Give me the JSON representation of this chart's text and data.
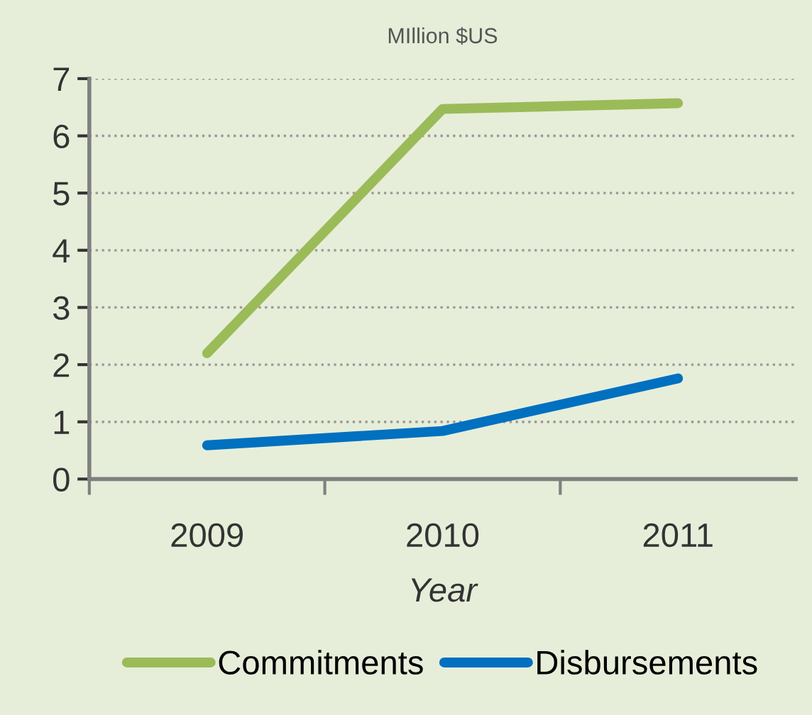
{
  "chart_data": {
    "type": "line",
    "title": "MIllion $US",
    "xlabel": "Year",
    "categories": [
      "2009",
      "2010",
      "2011"
    ],
    "series": [
      {
        "name": "Commitments",
        "color": "#9bbb59",
        "values": [
          2.2,
          6.47,
          6.57
        ]
      },
      {
        "name": "Disbursements",
        "color": "#0070c0",
        "values": [
          0.59,
          0.84,
          1.76
        ]
      }
    ],
    "ylim": [
      0,
      7
    ],
    "yticks": [
      0,
      1,
      2,
      3,
      4,
      5,
      6,
      7
    ],
    "grid": "y",
    "legend": "bottom",
    "marker": "none",
    "line_style": "solid"
  }
}
